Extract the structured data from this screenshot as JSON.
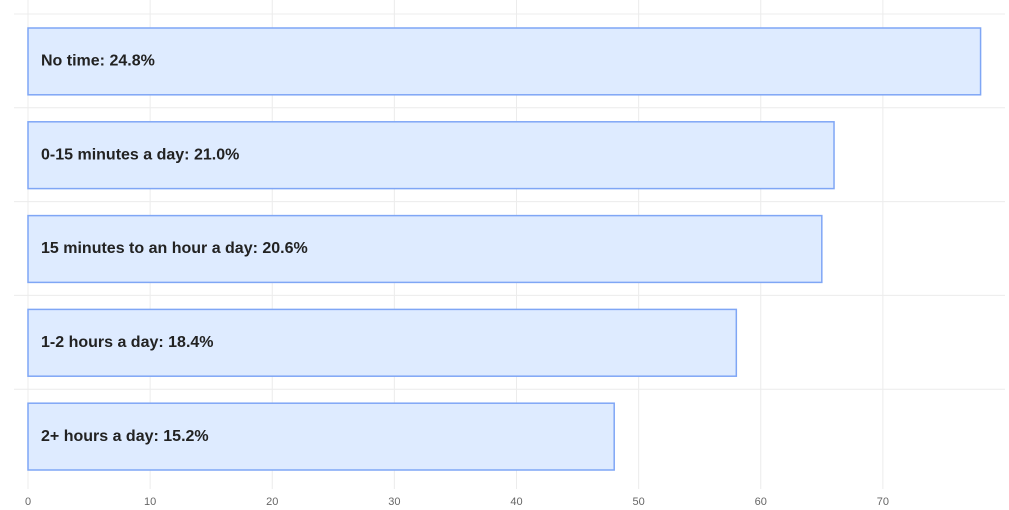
{
  "chart_data": {
    "type": "barh",
    "categories": [
      "No time: 24.8%",
      "0-15 minutes a day: 21.0%",
      "15 minutes to an hour a day: 20.6%",
      "1-2 hours a day: 18.4%",
      "2+ hours a day: 15.2%"
    ],
    "values": [
      78,
      66,
      65,
      58,
      48
    ],
    "color": "#deebff",
    "edge_color": "#7fa6f5",
    "xlim": [
      0,
      80
    ],
    "xticks": [
      0,
      10,
      20,
      30,
      40,
      50,
      60,
      70
    ],
    "grid": true
  }
}
